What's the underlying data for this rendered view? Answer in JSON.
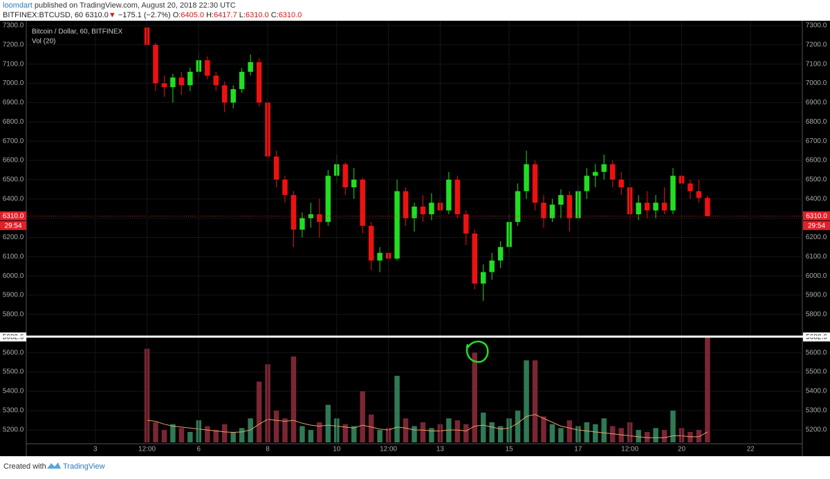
{
  "header": {
    "author": "loomdart",
    "published": "published on TradingView.com, August 20, 2018 22:30 UTC",
    "symbol": "BITFINEX:BTCUSD, 60",
    "price": "6310.0",
    "arrow": "▼",
    "change": "−175.1 (−2.7%)",
    "o_label": "O:",
    "o": "6405.0",
    "h_label": "H:",
    "h": "6417.7",
    "l_label": "L:",
    "l": "6310.0",
    "c_label": "C:",
    "c": "6310.0"
  },
  "chart_data": [
    {
      "type": "candlestick",
      "xlim": [
        -48,
        492
      ],
      "ylim": [
        5692,
        7325
      ],
      "yticks": [
        {
          "value": 5800,
          "label": "5800.0"
        },
        {
          "value": 5900,
          "label": "5900.0"
        },
        {
          "value": 6000,
          "label": "6000.0"
        },
        {
          "value": 6100,
          "label": "6100.0"
        },
        {
          "value": 6200,
          "label": "6200.0"
        },
        {
          "value": 6300,
          "label": "6300.0"
        },
        {
          "value": 6400,
          "label": "6400.0"
        },
        {
          "value": 6500,
          "label": "6500.0"
        },
        {
          "value": 6600,
          "label": "6600.0"
        },
        {
          "value": 6700,
          "label": "6700.0"
        },
        {
          "value": 6800,
          "label": "6800.0"
        },
        {
          "value": 6900,
          "label": "6900.0"
        },
        {
          "value": 7000,
          "label": "7000.0"
        },
        {
          "value": 7100,
          "label": "7100.0"
        },
        {
          "value": 7200,
          "label": "7200.0"
        },
        {
          "value": 7300,
          "label": "7300.0"
        }
      ],
      "grid": true,
      "last_price": {
        "value": 6310,
        "label": "6310.0"
      },
      "countdown": "29:54",
      "last_color": "#e0202a",
      "series": [
        {
          "name": "Bitcoin / Dollar, 60, BITFINEX",
          "up_color": "#22dd22",
          "down_color": "#ee1111",
          "x": [
            36,
            42,
            48,
            54,
            60,
            66,
            72,
            78,
            84,
            90,
            96,
            102,
            108,
            114,
            120,
            126,
            132,
            138,
            144,
            150,
            156,
            162,
            168,
            174,
            180,
            186,
            192,
            198,
            204,
            210,
            216,
            222,
            228,
            234,
            240,
            246,
            252,
            258,
            264,
            270,
            276,
            282,
            288,
            294,
            300,
            306,
            312,
            318,
            324,
            330,
            336,
            342,
            348,
            354,
            360,
            366,
            372,
            378,
            384,
            390,
            396,
            402,
            408,
            414,
            420,
            426
          ],
          "open": [
            7290,
            7200,
            7000,
            6980,
            7030,
            6990,
            7060,
            7120,
            7040,
            6990,
            6900,
            6970,
            7060,
            7110,
            6900,
            6620,
            6500,
            6420,
            6240,
            6300,
            6320,
            6280,
            6520,
            6580,
            6460,
            6500,
            6260,
            6080,
            6120,
            6090,
            6440,
            6300,
            6360,
            6320,
            6380,
            6340,
            6500,
            6320,
            6220,
            5960,
            6020,
            6080,
            6150,
            6280,
            6440,
            6580,
            6380,
            6300,
            6370,
            6420,
            6300,
            6440,
            6520,
            6540,
            6580,
            6500,
            6460,
            6320,
            6380,
            6340,
            6380,
            6340,
            6520,
            6480,
            6440,
            6405
          ],
          "high": [
            7310,
            7210,
            7040,
            7050,
            7060,
            7080,
            7160,
            7140,
            7060,
            7010,
            6990,
            7080,
            7150,
            7130,
            6920,
            6650,
            6520,
            6440,
            6330,
            6380,
            6400,
            6550,
            6630,
            6590,
            6560,
            6510,
            6280,
            6150,
            6150,
            6500,
            6460,
            6380,
            6420,
            6430,
            6420,
            6540,
            6520,
            6340,
            6240,
            6060,
            6120,
            6180,
            6320,
            6480,
            6650,
            6600,
            6420,
            6400,
            6450,
            6440,
            6470,
            6560,
            6580,
            6630,
            6600,
            6540,
            6480,
            6420,
            6440,
            6420,
            6460,
            6560,
            6540,
            6500,
            6500,
            6417.7
          ],
          "low": [
            7180,
            6960,
            6930,
            6900,
            6940,
            6960,
            7030,
            7020,
            6960,
            6850,
            6870,
            6950,
            7040,
            6880,
            6580,
            6460,
            6380,
            6150,
            6200,
            6250,
            6200,
            6260,
            6480,
            6420,
            6400,
            6220,
            6030,
            6020,
            6050,
            6080,
            6260,
            6230,
            6280,
            6290,
            6300,
            6320,
            6300,
            6160,
            5930,
            5870,
            5980,
            6040,
            6120,
            6260,
            6400,
            6340,
            6250,
            6280,
            6300,
            6230,
            6280,
            6400,
            6460,
            6500,
            6460,
            6420,
            6290,
            6290,
            6300,
            6300,
            6320,
            6320,
            6440,
            6400,
            6380,
            6310
          ],
          "close": [
            7200,
            7000,
            6980,
            7030,
            6990,
            7060,
            7120,
            7040,
            6990,
            6900,
            6970,
            7060,
            7110,
            6900,
            6620,
            6500,
            6420,
            6240,
            6300,
            6320,
            6280,
            6520,
            6580,
            6460,
            6500,
            6260,
            6080,
            6120,
            6090,
            6440,
            6300,
            6360,
            6320,
            6380,
            6340,
            6500,
            6320,
            6220,
            5960,
            6020,
            6080,
            6150,
            6280,
            6440,
            6580,
            6380,
            6300,
            6370,
            6420,
            6300,
            6440,
            6520,
            6540,
            6580,
            6500,
            6460,
            6320,
            6380,
            6340,
            6380,
            6340,
            6520,
            6480,
            6440,
            6405,
            6310
          ]
        }
      ]
    },
    {
      "type": "volume",
      "xlim": [
        -48,
        492
      ],
      "ylim": [
        5136,
        5679
      ],
      "yticks": [
        {
          "value": 5200,
          "label": "5200.0"
        },
        {
          "value": 5300,
          "label": "5300.0"
        },
        {
          "value": 5400,
          "label": "5400.0"
        },
        {
          "value": 5500,
          "label": "5500.0"
        },
        {
          "value": 5600,
          "label": "5600.0"
        }
      ],
      "top_label": {
        "value": 5682.6,
        "label": "5682.6"
      },
      "xticks": [
        {
          "value": 0,
          "label": "3"
        },
        {
          "value": 36,
          "label": "12:00"
        },
        {
          "value": 72,
          "label": "6"
        },
        {
          "value": 120,
          "label": "8"
        },
        {
          "value": 168,
          "label": "10"
        },
        {
          "value": 204,
          "label": "12:00"
        },
        {
          "value": 240,
          "label": "13"
        },
        {
          "value": 288,
          "label": "15"
        },
        {
          "value": 336,
          "label": "17"
        },
        {
          "value": 372,
          "label": "12:00"
        },
        {
          "value": 408,
          "label": "20"
        },
        {
          "value": 456,
          "label": "22"
        }
      ],
      "series": [
        {
          "name": "Vol (20)",
          "up_color": "#2f7a55",
          "down_color": "#7c2633",
          "ma_color": "#e8a070",
          "values": [
            5620,
            5240,
            5200,
            5230,
            5210,
            5190,
            5250,
            5220,
            5200,
            5230,
            5190,
            5210,
            5260,
            5450,
            5540,
            5300,
            5260,
            5580,
            5220,
            5200,
            5240,
            5330,
            5260,
            5230,
            5220,
            5400,
            5280,
            5200,
            5210,
            5480,
            5260,
            5220,
            5240,
            5210,
            5230,
            5260,
            5250,
            5230,
            5600,
            5290,
            5240,
            5220,
            5260,
            5300,
            5560,
            5560,
            5270,
            5230,
            5210,
            5250,
            5220,
            5240,
            5230,
            5260,
            5220,
            5210,
            5240,
            5200,
            5190,
            5210,
            5200,
            5300,
            5210,
            5190,
            5200,
            5680
          ],
          "ma": [
            5250,
            5245,
            5230,
            5220,
            5215,
            5210,
            5205,
            5200,
            5195,
            5190,
            5188,
            5190,
            5200,
            5230,
            5255,
            5250,
            5245,
            5250,
            5235,
            5225,
            5220,
            5225,
            5220,
            5215,
            5210,
            5225,
            5215,
            5205,
            5200,
            5215,
            5210,
            5200,
            5200,
            5195,
            5195,
            5200,
            5200,
            5195,
            5220,
            5225,
            5215,
            5205,
            5210,
            5235,
            5270,
            5280,
            5260,
            5240,
            5220,
            5210,
            5200,
            5195,
            5190,
            5185,
            5180,
            5175,
            5170,
            5165,
            5160,
            5160,
            5160,
            5170,
            5170,
            5165,
            5165,
            5190
          ]
        }
      ]
    }
  ],
  "footer": {
    "created": "Created with",
    "brand": "TradingView"
  }
}
